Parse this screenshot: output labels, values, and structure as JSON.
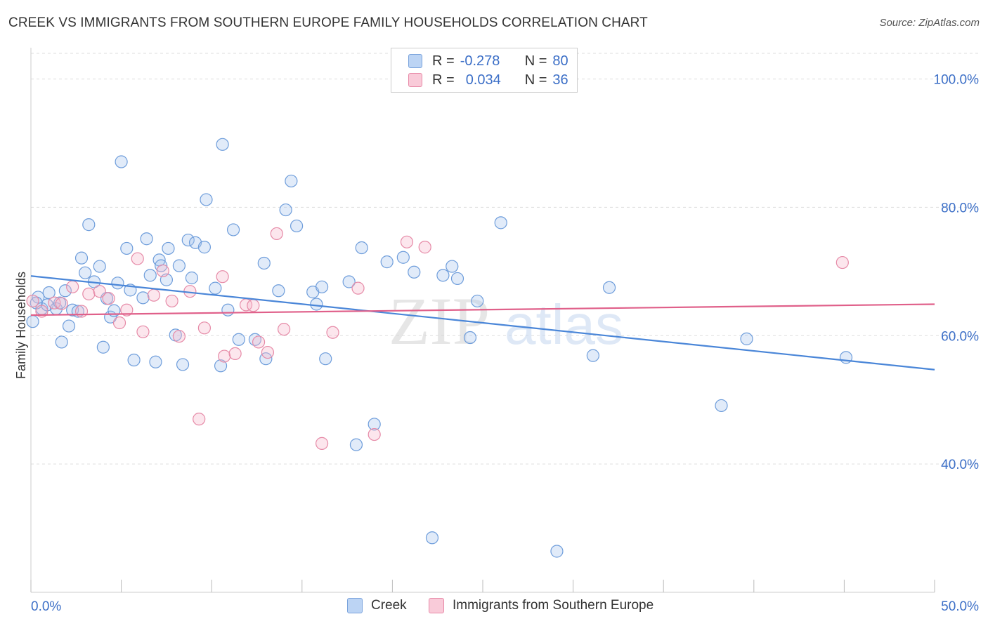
{
  "title": "CREEK VS IMMIGRANTS FROM SOUTHERN EUROPE FAMILY HOUSEHOLDS CORRELATION CHART",
  "source": "Source: ZipAtlas.com",
  "watermark": {
    "zip": "ZIP",
    "atlas": "atlas"
  },
  "legend": {
    "rows": [
      {
        "r_label": "R =",
        "r_value": "-0.278",
        "n_label": "N =",
        "n_value": "80",
        "color": "#a9c7ef"
      },
      {
        "r_label": "R =",
        "r_value": "0.034",
        "n_label": "N =",
        "n_value": "36",
        "color": "#f5b8cb"
      }
    ]
  },
  "colors": {
    "creek": "#4a86d8",
    "creek_fill": "#a9c7ef",
    "immig": "#e0608a",
    "immig_fill": "#f5b8cb",
    "accent_text": "#3c6fc7"
  },
  "chart_data": {
    "type": "scatter",
    "title": "CREEK VS IMMIGRANTS FROM SOUTHERN EUROPE FAMILY HOUSEHOLDS CORRELATION CHART",
    "xlabel": "",
    "ylabel": "Family Households",
    "xlim": [
      0,
      50
    ],
    "ylim": [
      20,
      104
    ],
    "x_tick_labels": [
      "0.0%",
      "50.0%"
    ],
    "y_ticks": [
      40,
      60,
      80,
      100
    ],
    "y_tick_labels": [
      "40.0%",
      "60.0%",
      "80.0%",
      "100.0%"
    ],
    "grid": true,
    "series": [
      {
        "name": "Creek",
        "color": "#4a86d8",
        "trend": [
          [
            0,
            69.3
          ],
          [
            50,
            54.7
          ]
        ],
        "points": [
          [
            0.1,
            62.2
          ],
          [
            0.4,
            66.0
          ],
          [
            0.6,
            64.2
          ],
          [
            0.9,
            64.8
          ],
          [
            1.0,
            66.7
          ],
          [
            1.4,
            64.2
          ],
          [
            1.6,
            65.1
          ],
          [
            1.7,
            59.0
          ],
          [
            1.9,
            67.0
          ],
          [
            2.1,
            61.5
          ],
          [
            2.3,
            64.0
          ],
          [
            2.6,
            63.8
          ],
          [
            2.8,
            72.1
          ],
          [
            3.0,
            69.8
          ],
          [
            3.2,
            77.3
          ],
          [
            3.5,
            68.4
          ],
          [
            3.8,
            70.8
          ],
          [
            4.0,
            58.2
          ],
          [
            4.2,
            65.8
          ],
          [
            4.4,
            62.9
          ],
          [
            4.6,
            63.9
          ],
          [
            4.8,
            68.2
          ],
          [
            5.0,
            87.1
          ],
          [
            5.3,
            73.6
          ],
          [
            5.5,
            67.1
          ],
          [
            5.7,
            56.2
          ],
          [
            6.2,
            65.9
          ],
          [
            6.4,
            75.1
          ],
          [
            6.6,
            69.4
          ],
          [
            6.9,
            55.9
          ],
          [
            7.1,
            71.8
          ],
          [
            7.2,
            70.9
          ],
          [
            7.5,
            68.7
          ],
          [
            7.6,
            73.6
          ],
          [
            8.0,
            60.1
          ],
          [
            8.2,
            70.9
          ],
          [
            8.4,
            55.5
          ],
          [
            8.7,
            74.9
          ],
          [
            8.9,
            69.0
          ],
          [
            9.1,
            74.5
          ],
          [
            9.6,
            73.8
          ],
          [
            9.7,
            81.2
          ],
          [
            10.2,
            67.4
          ],
          [
            10.5,
            55.3
          ],
          [
            10.6,
            89.8
          ],
          [
            10.9,
            64.0
          ],
          [
            11.2,
            76.5
          ],
          [
            11.5,
            59.4
          ],
          [
            12.4,
            59.4
          ],
          [
            12.9,
            71.3
          ],
          [
            13.0,
            56.4
          ],
          [
            13.7,
            67.0
          ],
          [
            14.1,
            79.6
          ],
          [
            14.4,
            84.1
          ],
          [
            14.7,
            77.1
          ],
          [
            15.6,
            66.8
          ],
          [
            15.8,
            64.9
          ],
          [
            16.1,
            67.6
          ],
          [
            16.3,
            56.4
          ],
          [
            17.6,
            68.4
          ],
          [
            18.0,
            43.0
          ],
          [
            18.3,
            73.7
          ],
          [
            19.0,
            46.2
          ],
          [
            19.7,
            71.5
          ],
          [
            20.6,
            72.2
          ],
          [
            21.2,
            69.9
          ],
          [
            22.2,
            28.5
          ],
          [
            22.8,
            69.4
          ],
          [
            23.3,
            70.8
          ],
          [
            23.6,
            68.9
          ],
          [
            24.3,
            59.7
          ],
          [
            24.7,
            65.4
          ],
          [
            26.0,
            77.6
          ],
          [
            29.1,
            26.4
          ],
          [
            31.1,
            56.9
          ],
          [
            32.0,
            67.5
          ],
          [
            38.2,
            49.1
          ],
          [
            39.6,
            59.5
          ],
          [
            45.1,
            56.6
          ],
          [
            0.3,
            65.1
          ]
        ]
      },
      {
        "name": "Immigrants from Southern Europe",
        "color": "#e0608a",
        "trend": [
          [
            0,
            63.2
          ],
          [
            50,
            64.9
          ]
        ],
        "points": [
          [
            0.1,
            65.4
          ],
          [
            0.6,
            63.8
          ],
          [
            1.3,
            65.1
          ],
          [
            1.7,
            65.0
          ],
          [
            2.3,
            67.6
          ],
          [
            2.8,
            63.8
          ],
          [
            3.2,
            66.5
          ],
          [
            3.8,
            66.9
          ],
          [
            4.3,
            65.8
          ],
          [
            4.9,
            62.0
          ],
          [
            5.3,
            64.0
          ],
          [
            5.9,
            72.0
          ],
          [
            6.2,
            60.6
          ],
          [
            6.8,
            66.3
          ],
          [
            7.3,
            70.1
          ],
          [
            7.8,
            65.4
          ],
          [
            8.2,
            59.9
          ],
          [
            8.8,
            66.9
          ],
          [
            9.3,
            47.0
          ],
          [
            9.6,
            61.2
          ],
          [
            10.6,
            69.2
          ],
          [
            10.7,
            56.8
          ],
          [
            11.3,
            57.2
          ],
          [
            11.9,
            64.8
          ],
          [
            12.3,
            64.7
          ],
          [
            12.6,
            59.0
          ],
          [
            13.1,
            57.4
          ],
          [
            13.6,
            75.9
          ],
          [
            14.0,
            61.0
          ],
          [
            16.1,
            43.2
          ],
          [
            16.7,
            60.5
          ],
          [
            18.1,
            67.4
          ],
          [
            19.0,
            44.6
          ],
          [
            20.8,
            74.6
          ],
          [
            21.8,
            73.8
          ],
          [
            44.9,
            71.4
          ]
        ]
      }
    ]
  }
}
